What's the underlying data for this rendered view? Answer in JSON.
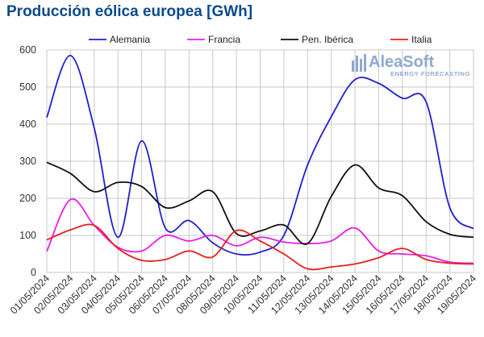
{
  "chart_data": {
    "type": "line",
    "title": "Producción eólica europea [GWh]",
    "xlabel": "",
    "ylabel": "",
    "ylim": [
      0,
      600
    ],
    "yticks": [
      0,
      100,
      200,
      300,
      400,
      500,
      600
    ],
    "grid": true,
    "legend_position": "top",
    "categories": [
      "01/05/2024",
      "02/05/2024",
      "03/05/2024",
      "04/05/2024",
      "05/05/2024",
      "06/05/2024",
      "07/05/2024",
      "08/05/2024",
      "09/05/2024",
      "10/05/2024",
      "11/05/2024",
      "12/05/2024",
      "13/05/2024",
      "14/05/2024",
      "15/05/2024",
      "16/05/2024",
      "17/05/2024",
      "18/05/2024",
      "19/05/2024"
    ],
    "series": [
      {
        "name": "Alemania",
        "color": "#1f1fd0",
        "values": [
          418,
          585,
          390,
          95,
          355,
          120,
          140,
          80,
          50,
          55,
          100,
          290,
          420,
          520,
          510,
          470,
          460,
          175,
          118
        ]
      },
      {
        "name": "Francia",
        "color": "#e81ee8",
        "values": [
          57,
          197,
          127,
          68,
          58,
          100,
          85,
          100,
          72,
          95,
          82,
          78,
          85,
          120,
          58,
          50,
          45,
          28,
          25
        ]
      },
      {
        "name": "Pen. Ibérica",
        "color": "#111111",
        "values": [
          297,
          267,
          218,
          243,
          232,
          175,
          193,
          218,
          105,
          112,
          128,
          78,
          205,
          290,
          228,
          207,
          137,
          103,
          95
        ]
      },
      {
        "name": "Italia",
        "color": "#e81e1e",
        "values": [
          88,
          115,
          127,
          65,
          33,
          35,
          58,
          42,
          113,
          85,
          50,
          10,
          15,
          23,
          40,
          65,
          35,
          25,
          23
        ]
      }
    ]
  },
  "logo": {
    "name": "AleaSoft",
    "tagline": "ENERGY FORECASTING"
  }
}
